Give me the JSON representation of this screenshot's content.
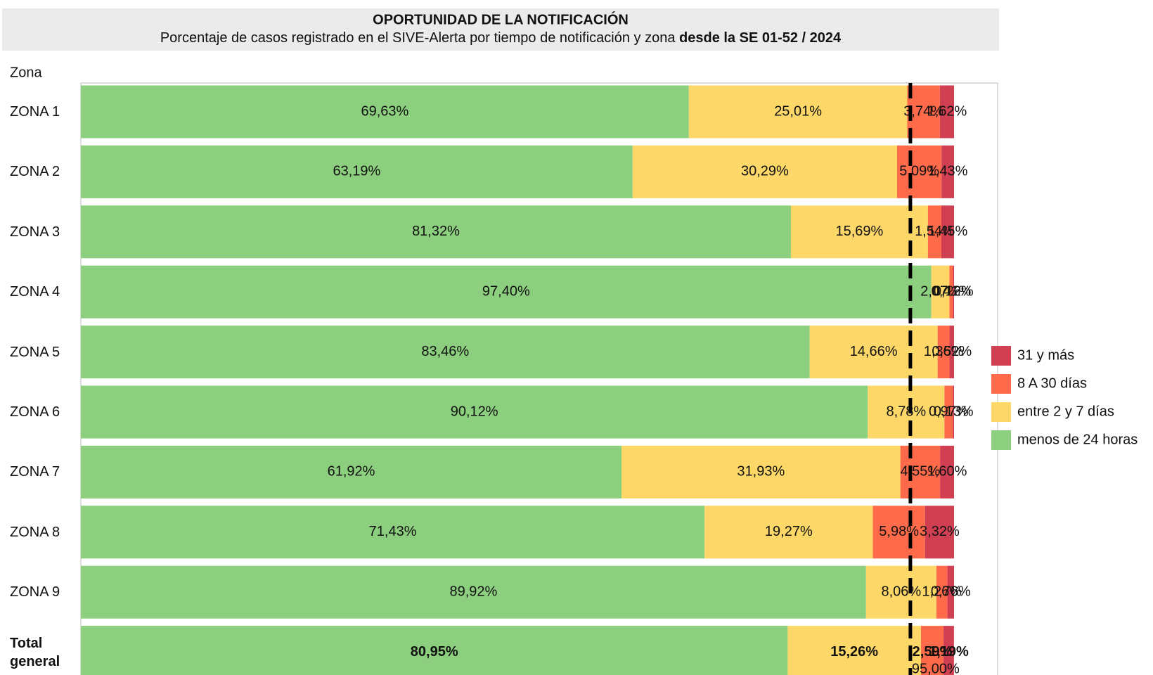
{
  "chart_data": {
    "type": "stacked-bar-horizontal",
    "title": "OPORTUNIDAD DE LA NOTIFICACIÓN",
    "subtitle": "Porcentaje de casos registrado en el SIVE-Alerta por tiempo de notificación y zona ",
    "subtitle_bold": "desde la SE 01-52 / 2024",
    "y_label": "Zona",
    "categories": [
      "ZONA 1",
      "ZONA 2",
      "ZONA 3",
      "ZONA 4",
      "ZONA 5",
      "ZONA 6",
      "ZONA 7",
      "ZONA 8",
      "ZONA 9",
      "Total general"
    ],
    "series": [
      {
        "name": "menos de 24 horas",
        "color": "#8ccf7e",
        "values": [
          69.63,
          63.19,
          81.32,
          97.4,
          83.46,
          90.12,
          61.92,
          71.43,
          89.92,
          80.95
        ],
        "value_labels": [
          "69,63%",
          "63,19%",
          "81,32%",
          "97,40%",
          "83,46%",
          "90,12%",
          "61,92%",
          "71,43%",
          "89,92%",
          "80,95%"
        ]
      },
      {
        "name": "entre 2 y 7 días",
        "color": "#fdd868",
        "values": [
          25.01,
          30.29,
          15.69,
          2.07,
          14.66,
          8.78,
          31.93,
          19.27,
          8.06,
          15.26
        ],
        "value_labels": [
          "25,01%",
          "30,29%",
          "15,69%",
          "2,07%",
          "14,66%",
          "8,78%",
          "31,93%",
          "19,27%",
          "8,06%",
          "15,26%"
        ]
      },
      {
        "name": "8 A 30 días",
        "color": "#ff6b4a",
        "values": [
          3.74,
          5.09,
          1.54,
          0.41,
          1.36,
          0.97,
          4.55,
          5.98,
          1.26,
          2.59
        ],
        "value_labels": [
          "3,74%",
          "5,09%",
          "1,54%",
          "0,41%",
          "1,36%",
          "0,97%",
          "4,55%",
          "5,98%",
          "1,26%",
          "2,59%"
        ]
      },
      {
        "name": "31 y más",
        "color": "#d13f52",
        "values": [
          1.62,
          1.43,
          1.45,
          0.12,
          0.52,
          0.13,
          1.6,
          3.32,
          0.76,
          1.19
        ],
        "value_labels": [
          "1,62%",
          "1,43%",
          "1,45%",
          "0,12%",
          "0,52%",
          "0,13%",
          "1,60%",
          "3,32%",
          "0,76%",
          "1,19%"
        ]
      }
    ],
    "xlim": [
      0,
      100
    ],
    "reference_line": {
      "value": 95,
      "label": "95,00%"
    }
  }
}
